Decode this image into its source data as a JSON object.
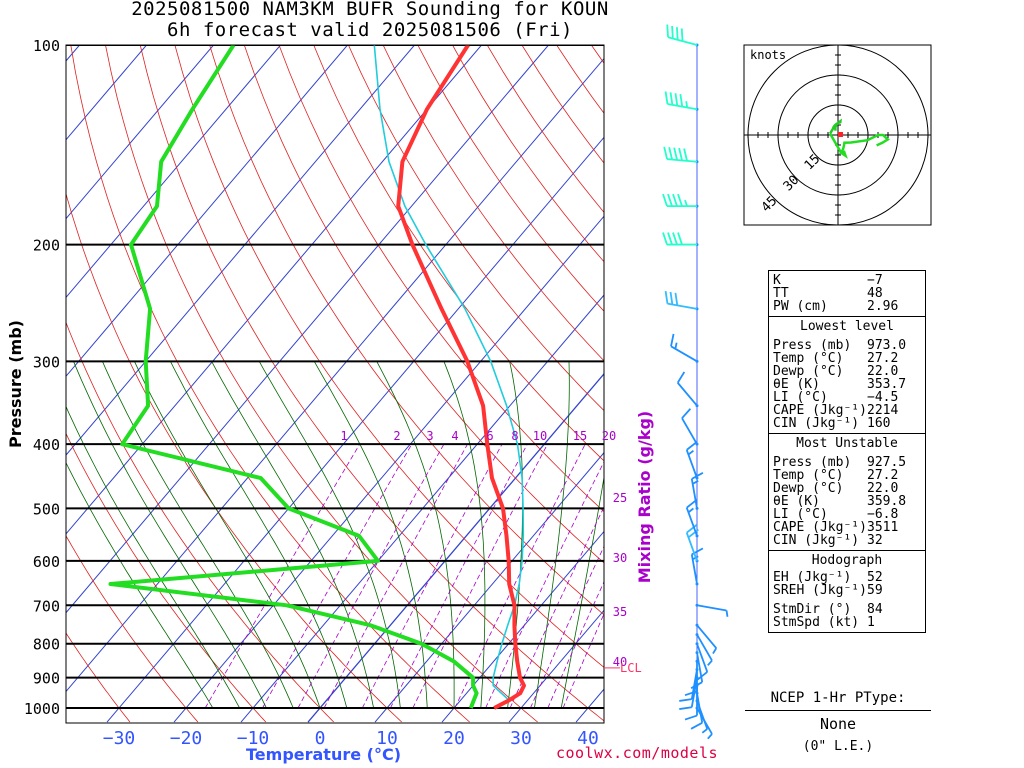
{
  "title_line1": "2025081500 NAM3KM BUFR Sounding for KOUN",
  "title_line2": "6h forecast valid 2025081506 (Fri)",
  "y_axis_label": "Pressure (mb)",
  "x_axis_label": "Temperature (°C)",
  "mixing_axis_label": "Mixing Ratio (g/kg)",
  "credit": "coolwx.com/models",
  "lcl_label": "LCL",
  "pressure_ticks": [
    "100",
    "200",
    "300",
    "400",
    "500",
    "600",
    "700",
    "800",
    "900",
    "1000"
  ],
  "temp_ticks": [
    "-30",
    "-20",
    "-10",
    "0",
    "10",
    "20",
    "30",
    "40"
  ],
  "mixing_top_labels": [
    "1",
    "2",
    "3",
    "4",
    "6",
    "8",
    "10",
    "15",
    "20"
  ],
  "mixing_side_labels": [
    "25",
    "30",
    "35",
    "40"
  ],
  "hodograph": {
    "units_label": "knots",
    "ring_labels": [
      "15",
      "30",
      "45"
    ]
  },
  "indices": {
    "k_label": "K",
    "k": "−7",
    "tt_label": "TT",
    "tt": "48",
    "pw_label": "PW (cm)",
    "pw": "2.96"
  },
  "lowest": {
    "header": "Lowest level",
    "press_label": "Press (mb)",
    "press": "973.0",
    "temp_label": "Temp (°C)",
    "temp": "27.2",
    "dewp_label": "Dewp (°C)",
    "dewp": "22.0",
    "thetae_label": "θE (K)",
    "thetae": "353.7",
    "li_label": "LI (°C)",
    "li": "−4.5",
    "cape_label": "CAPE (Jkg⁻¹)",
    "cape": "2214",
    "cin_label": "CIN (Jkg⁻¹)",
    "cin": "160"
  },
  "unstable": {
    "header": "Most Unstable",
    "press_label": "Press (mb)",
    "press": "927.5",
    "temp_label": "Temp (°C)",
    "temp": "27.2",
    "dewp_label": "Dewp (°C)",
    "dewp": "22.0",
    "thetae_label": "θE (K)",
    "thetae": "359.8",
    "li_label": "LI (°C)",
    "li": "−6.8",
    "cape_label": "CAPE (Jkg⁻¹)",
    "cape": "3511",
    "cin_label": "CIN (Jkg⁻¹)",
    "cin": "32"
  },
  "hodo_params": {
    "header": "Hodograph",
    "eh_label": "EH (Jkg⁻¹)",
    "eh": "52",
    "sreh_label": "SREH (Jkg⁻¹)",
    "sreh": "59",
    "stmdir_label": "StmDir (°)",
    "stmdir": "84",
    "stmspd_label": "StmSpd (kt)",
    "stmspd": "1"
  },
  "ptype": {
    "header": "NCEP 1-Hr PType:",
    "value": "None",
    "liquid": "(0\" L.E.)"
  },
  "colors": {
    "temperature": "#ff3333",
    "dewpoint": "#22dd22",
    "parcel": "#22ccdd",
    "isotherm": "#3344cc",
    "dry_adiabat": "#dd2222",
    "moist_adiabat": "#006600",
    "mixing_ratio": "#aa00cc",
    "wind": "#1e90ff"
  },
  "chart_data": {
    "type": "skew-t",
    "xlabel": "Temperature (°C)",
    "ylabel": "Pressure (mb)",
    "xlim": [
      -40,
      40
    ],
    "ylim": [
      1000,
      100
    ],
    "series": [
      {
        "name": "Temperature",
        "pressure": [
          1000,
          975,
          950,
          925,
          900,
          850,
          800,
          750,
          700,
          650,
          600,
          550,
          500,
          450,
          400,
          350,
          300,
          250,
          200,
          175,
          150,
          125,
          100
        ],
        "values": [
          26.0,
          27.2,
          28.0,
          27.6,
          26.0,
          23.5,
          21.0,
          18.5,
          16.0,
          12.5,
          9.5,
          6.0,
          2.0,
          -3.5,
          -8.5,
          -14.0,
          -22.0,
          -32.5,
          -45.0,
          -52.0,
          -57.0,
          -60.0,
          -62.0
        ]
      },
      {
        "name": "Dewpoint",
        "pressure": [
          1000,
          975,
          950,
          925,
          900,
          850,
          800,
          750,
          700,
          650,
          600,
          550,
          500,
          450,
          400,
          350,
          300,
          250,
          200,
          175,
          150,
          125,
          100
        ],
        "values": [
          22.5,
          22.0,
          21.5,
          20.0,
          19.0,
          14.0,
          7.0,
          -3.0,
          -18.0,
          -47.0,
          -10.0,
          -16.0,
          -30.0,
          -38.0,
          -63.0,
          -64.0,
          -70.0,
          -76.0,
          -87.0,
          -88.0,
          -93.0,
          -95.0,
          -97.0
        ]
      },
      {
        "name": "Parcel",
        "pressure": [
          973,
          925,
          900,
          850,
          800,
          750,
          700,
          650,
          600,
          550,
          500,
          450,
          400,
          350,
          300,
          250,
          200,
          175,
          150,
          125,
          100
        ],
        "values": [
          27.2,
          23.0,
          22.0,
          20.5,
          19.0,
          17.5,
          16.0,
          14.0,
          11.5,
          8.5,
          5.0,
          1.0,
          -4.0,
          -10.5,
          -18.5,
          -29.0,
          -43.0,
          -51.0,
          -59.0,
          -67.0,
          -76.0
        ]
      }
    ],
    "wind": {
      "pressure": [
        1000,
        975,
        950,
        925,
        900,
        875,
        850,
        825,
        800,
        775,
        750,
        700,
        650,
        600,
        550,
        500,
        450,
        400,
        350,
        300,
        250,
        200,
        175,
        150,
        125,
        100
      ],
      "speed_kt": [
        5,
        8,
        10,
        12,
        14,
        13,
        12,
        11,
        10,
        9,
        8,
        8,
        18,
        22,
        18,
        18,
        15,
        12,
        10,
        15,
        30,
        40,
        45,
        50,
        45,
        40
      ],
      "dir_deg": [
        150,
        160,
        170,
        180,
        190,
        190,
        180,
        170,
        160,
        150,
        140,
        100,
        350,
        340,
        340,
        350,
        340,
        330,
        320,
        300,
        280,
        270,
        270,
        275,
        280,
        285
      ]
    },
    "lcl_pressure": 870
  }
}
